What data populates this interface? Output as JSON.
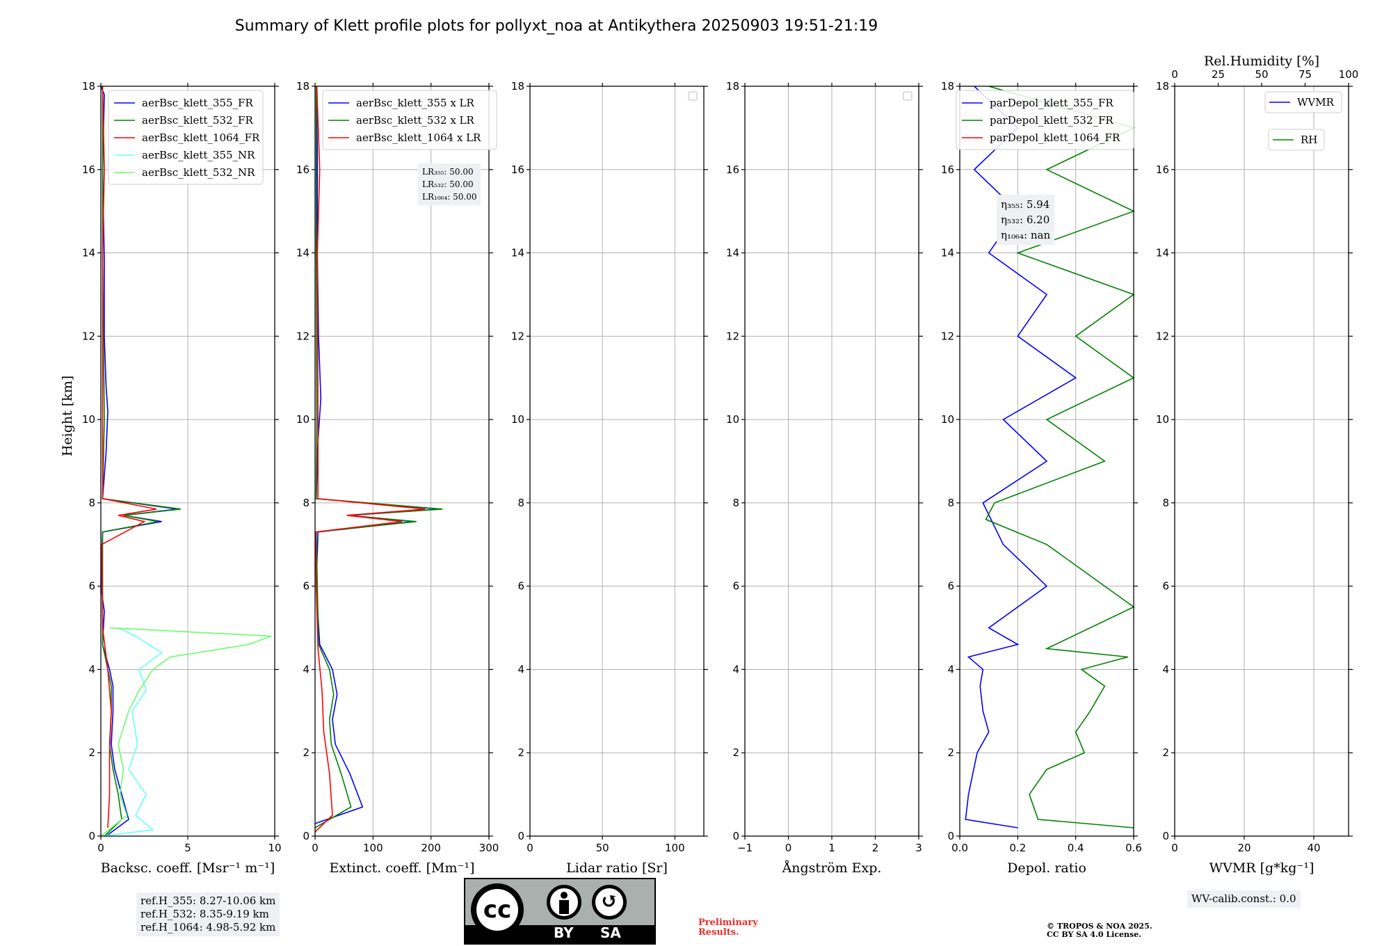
{
  "title": "Summary of Klett profile plots for pollyxt_noa at Antikythera 20250903 19:51-21:19",
  "ylabel": "Height [km]",
  "ylim": [
    0,
    18
  ],
  "yticks": [
    "0",
    "2",
    "4",
    "6",
    "8",
    "10",
    "12",
    "14",
    "16",
    "18"
  ],
  "panels": [
    {
      "xlabel": "Backsc. coeff. [Msr⁻¹ m⁻¹]",
      "xlim": [
        0,
        10
      ],
      "xticks": [
        0,
        5,
        10
      ],
      "xticklabels": [
        "0",
        "5",
        "10"
      ],
      "legend": [
        "aerBsc_klett_355_FR",
        "aerBsc_klett_532_FR",
        "aerBsc_klett_1064_FR",
        "aerBsc_klett_355_NR",
        "aerBsc_klett_532_NR"
      ]
    },
    {
      "xlabel": "Extinct. coeff. [Mm⁻¹]",
      "xlim": [
        0,
        300
      ],
      "xticks": [
        0,
        100,
        200,
        300
      ],
      "xticklabels": [
        "0",
        "100",
        "200",
        "300"
      ],
      "legend": [
        "aerBsc_klett_355 x LR",
        "aerBsc_klett_532 x LR",
        "aerBsc_klett_1064 x LR"
      ]
    },
    {
      "xlabel": "Lidar ratio [Sr]",
      "xlim": [
        0,
        120
      ],
      "xticks": [
        0,
        50,
        100
      ],
      "xticklabels": [
        "0",
        "50",
        "100"
      ],
      "legend": []
    },
    {
      "xlabel": "Ångström Exp.",
      "xlim": [
        -1,
        3
      ],
      "xticks": [
        -1,
        0,
        1,
        2,
        3
      ],
      "xticklabels": [
        "−1",
        "0",
        "1",
        "2",
        "3"
      ],
      "legend": []
    },
    {
      "xlabel": "Depol. ratio",
      "xlim": [
        0,
        0.6
      ],
      "xticks": [
        0,
        0.2,
        0.4,
        0.6
      ],
      "xticklabels": [
        "0.0",
        "0.2",
        "0.4",
        "0.6"
      ],
      "legend": [
        "parDepol_klett_355_FR",
        "parDepol_klett_532_FR",
        "parDepol_klett_1064_FR"
      ]
    },
    {
      "xlabel": "WVMR [g*kg⁻¹]",
      "xlim": [
        0,
        50
      ],
      "xticks": [
        0,
        20,
        40
      ],
      "xticklabels": [
        "0",
        "20",
        "40"
      ],
      "legend": [
        "WVMR",
        "RH"
      ],
      "top_xlabel": "Rel.Humidity [%]",
      "top_xlim": [
        0,
        100
      ],
      "top_xticks": [
        0,
        25,
        50,
        75,
        100
      ],
      "top_xticklabels": [
        "0",
        "25",
        "50",
        "75",
        "100"
      ]
    }
  ],
  "colors": {
    "c355": "#0000ff",
    "c532": "#008000",
    "c1064": "#ff0000",
    "c355nr": "#66ffff",
    "c532nr": "#66ff66"
  },
  "lr_info": [
    "LR₃₅₅: 50.00",
    "LR₅₃₂: 50.00",
    "LR₁₀₆₄: 50.00"
  ],
  "eta_info": [
    "η₃₅₅: 5.94",
    "η₅₃₂: 6.20",
    "η₁₀₆₄: nan"
  ],
  "ref_heights": [
    "ref.H_355: 8.27-10.06 km",
    "ref.H_532: 8.35-9.19 km",
    "ref.H_1064: 4.98-5.92 km"
  ],
  "wv_calib": "WV-calib.const.: 0.0",
  "preliminary": [
    "Preliminary",
    "Results."
  ],
  "copyright": [
    "© TROPOS & NOA 2025.",
    "CC BY SA 4.0 License."
  ],
  "license_badge": {
    "cc": "cc",
    "by": "BY",
    "sa": "SA"
  },
  "chart_data": {
    "type": "line",
    "panels": [
      {
        "name": "backscatter",
        "units": "Msr-1 m-1",
        "series": [
          {
            "name": "aerBsc_klett_355_FR",
            "points": [
              [
                0.3,
                0
              ],
              [
                1.6,
                0.4
              ],
              [
                1.2,
                1
              ],
              [
                0.8,
                1.6
              ],
              [
                0.6,
                2.2
              ],
              [
                0.7,
                3
              ],
              [
                0.7,
                3.6
              ],
              [
                0.5,
                4
              ],
              [
                0.1,
                4.6
              ],
              [
                0.2,
                5.4
              ],
              [
                0,
                6
              ],
              [
                0.1,
                7.3
              ],
              [
                3.5,
                7.55
              ],
              [
                1.3,
                7.7
              ],
              [
                4.4,
                7.85
              ],
              [
                0.1,
                8.1
              ],
              [
                0.3,
                9.2
              ],
              [
                0.4,
                10.2
              ],
              [
                0.3,
                10.8
              ],
              [
                0.2,
                12
              ],
              [
                0.2,
                13.8
              ],
              [
                0.1,
                16
              ],
              [
                0.2,
                17.8
              ],
              [
                0,
                18
              ]
            ]
          },
          {
            "name": "aerBsc_klett_532_FR",
            "points": [
              [
                0.2,
                0
              ],
              [
                1.2,
                0.4
              ],
              [
                1,
                1
              ],
              [
                0.7,
                1.6
              ],
              [
                0.5,
                2.2
              ],
              [
                0.6,
                3
              ],
              [
                0.6,
                3.6
              ],
              [
                0.4,
                4
              ],
              [
                0.1,
                4.6
              ],
              [
                0.1,
                6
              ],
              [
                0.1,
                7.3
              ],
              [
                3.3,
                7.55
              ],
              [
                1.3,
                7.7
              ],
              [
                4.6,
                7.85
              ],
              [
                0.1,
                8.1
              ],
              [
                0.2,
                10
              ],
              [
                0.1,
                14
              ],
              [
                0.1,
                18
              ]
            ]
          },
          {
            "name": "aerBsc_klett_1064_FR",
            "points": [
              [
                0.4,
                0.2
              ],
              [
                0.5,
                1
              ],
              [
                0.5,
                2
              ],
              [
                0.6,
                3
              ],
              [
                0.4,
                4
              ],
              [
                0.1,
                5
              ],
              [
                0.05,
                7
              ],
              [
                2.5,
                7.55
              ],
              [
                1,
                7.7
              ],
              [
                3.2,
                7.85
              ],
              [
                0.1,
                8.1
              ],
              [
                0.1,
                10
              ],
              [
                0.1,
                14
              ],
              [
                0.2,
                16
              ],
              [
                0.1,
                18
              ]
            ]
          },
          {
            "name": "aerBsc_klett_355_NR",
            "points": [
              [
                0,
                0
              ],
              [
                3,
                0.15
              ],
              [
                2,
                0.5
              ],
              [
                2.6,
                1
              ],
              [
                1.6,
                1.6
              ],
              [
                2.1,
                2.2
              ],
              [
                1.8,
                3
              ],
              [
                2.6,
                3.5
              ],
              [
                2.2,
                4
              ],
              [
                3.5,
                4.4
              ],
              [
                2,
                4.8
              ],
              [
                1,
                5
              ]
            ]
          },
          {
            "name": "aerBsc_klett_532_NR",
            "points": [
              [
                0,
                0
              ],
              [
                1.5,
                0.5
              ],
              [
                1.1,
                1
              ],
              [
                1.3,
                1.6
              ],
              [
                1,
                2.2
              ],
              [
                1.6,
                3
              ],
              [
                2.2,
                3.5
              ],
              [
                3,
                4
              ],
              [
                4,
                4.3
              ],
              [
                8.5,
                4.6
              ],
              [
                9.8,
                4.8
              ],
              [
                0.5,
                5
              ]
            ]
          }
        ]
      },
      {
        "name": "extinction",
        "units": "Mm-1",
        "series": [
          {
            "name": "aerBsc_klett_355 x LR",
            "points": [
              [
                0,
                0.3
              ],
              [
                82,
                0.7
              ],
              [
                60,
                1.5
              ],
              [
                35,
                2.2
              ],
              [
                30,
                2.8
              ],
              [
                38,
                3.4
              ],
              [
                30,
                4
              ],
              [
                8,
                4.6
              ],
              [
                2,
                6
              ],
              [
                5,
                7.3
              ],
              [
                170,
                7.55
              ],
              [
                60,
                7.7
              ],
              [
                215,
                7.85
              ],
              [
                2,
                8.1
              ],
              [
                5,
                9.5
              ],
              [
                10,
                10.5
              ],
              [
                6,
                12
              ],
              [
                4,
                14
              ],
              [
                4,
                16.5
              ],
              [
                2,
                18
              ]
            ]
          },
          {
            "name": "aerBsc_klett_532 x LR",
            "points": [
              [
                0,
                0.2
              ],
              [
                62,
                0.7
              ],
              [
                45,
                1.5
              ],
              [
                28,
                2.2
              ],
              [
                25,
                2.8
              ],
              [
                32,
                3.4
              ],
              [
                25,
                4
              ],
              [
                6,
                4.6
              ],
              [
                2,
                7.3
              ],
              [
                175,
                7.55
              ],
              [
                55,
                7.7
              ],
              [
                220,
                7.85
              ],
              [
                2,
                8.1
              ],
              [
                3,
                10
              ],
              [
                2,
                14
              ],
              [
                2,
                18
              ]
            ]
          },
          {
            "name": "aerBsc_klett_1064 x LR",
            "points": [
              [
                0,
                0.1
              ],
              [
                30,
                0.5
              ],
              [
                25,
                1.5
              ],
              [
                15,
                2.5
              ],
              [
                12,
                3.5
              ],
              [
                5,
                4.5
              ],
              [
                2,
                6
              ],
              [
                1,
                7.3
              ],
              [
                150,
                7.55
              ],
              [
                55,
                7.7
              ],
              [
                190,
                7.85
              ],
              [
                5,
                8.1
              ],
              [
                5,
                10
              ],
              [
                4,
                14
              ],
              [
                8,
                16
              ],
              [
                3,
                18
              ]
            ]
          }
        ]
      },
      {
        "name": "lidar_ratio",
        "units": "Sr",
        "series": []
      },
      {
        "name": "angstrom",
        "units": "",
        "series": []
      },
      {
        "name": "depol",
        "units": "",
        "series": [
          {
            "name": "parDepol_klett_355_FR",
            "points": [
              [
                0.2,
                0.2
              ],
              [
                0.02,
                0.4
              ],
              [
                0.03,
                1
              ],
              [
                0.06,
                2
              ],
              [
                0.1,
                2.5
              ],
              [
                0.08,
                3
              ],
              [
                0.07,
                3.6
              ],
              [
                0.08,
                4
              ],
              [
                0.03,
                4.3
              ],
              [
                0.2,
                4.6
              ],
              [
                0.1,
                5
              ],
              [
                0.3,
                6
              ],
              [
                0.15,
                7
              ],
              [
                0.08,
                8
              ],
              [
                0.3,
                9
              ],
              [
                0.15,
                10
              ],
              [
                0.4,
                11
              ],
              [
                0.2,
                12
              ],
              [
                0.3,
                13
              ],
              [
                0.1,
                14
              ],
              [
                0.2,
                15
              ],
              [
                0.05,
                16
              ],
              [
                0.2,
                17
              ],
              [
                0.05,
                18
              ]
            ]
          },
          {
            "name": "parDepol_klett_532_FR",
            "points": [
              [
                0.6,
                0.2
              ],
              [
                0.27,
                0.4
              ],
              [
                0.24,
                1
              ],
              [
                0.3,
                1.6
              ],
              [
                0.43,
                2
              ],
              [
                0.4,
                2.5
              ],
              [
                0.45,
                3
              ],
              [
                0.5,
                3.6
              ],
              [
                0.42,
                4
              ],
              [
                0.58,
                4.3
              ],
              [
                0.3,
                4.5
              ],
              [
                0.6,
                5.5
              ],
              [
                0.3,
                7
              ],
              [
                0.09,
                7.6
              ],
              [
                0.12,
                8
              ],
              [
                0.5,
                9
              ],
              [
                0.3,
                10
              ],
              [
                0.6,
                11
              ],
              [
                0.4,
                12
              ],
              [
                0.6,
                13
              ],
              [
                0.2,
                14
              ],
              [
                0.6,
                15
              ],
              [
                0.3,
                16
              ],
              [
                0.6,
                17
              ],
              [
                0.1,
                18
              ]
            ]
          },
          {
            "name": "parDepol_klett_1064_FR",
            "points": []
          }
        ]
      },
      {
        "name": "wvmr_rh",
        "units": "g*kg-1 / %",
        "series": [
          {
            "name": "WVMR",
            "points": []
          },
          {
            "name": "RH",
            "points": []
          }
        ]
      }
    ]
  }
}
